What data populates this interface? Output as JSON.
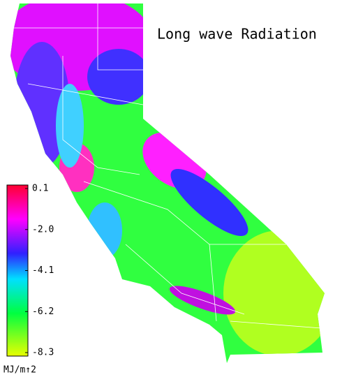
{
  "title": "Long wave Radiation",
  "colorbar": {
    "lim": [
      -8.3,
      0.1
    ],
    "ticks": [
      0.1,
      {
        "value": -2.0,
        "label": "-2.0"
      },
      {
        "value": -4.1,
        "label": "-4.1"
      },
      {
        "value": -6.2,
        "label": "-6.2"
      },
      -8.3
    ],
    "label": "MJ/m↑2"
  }
}
